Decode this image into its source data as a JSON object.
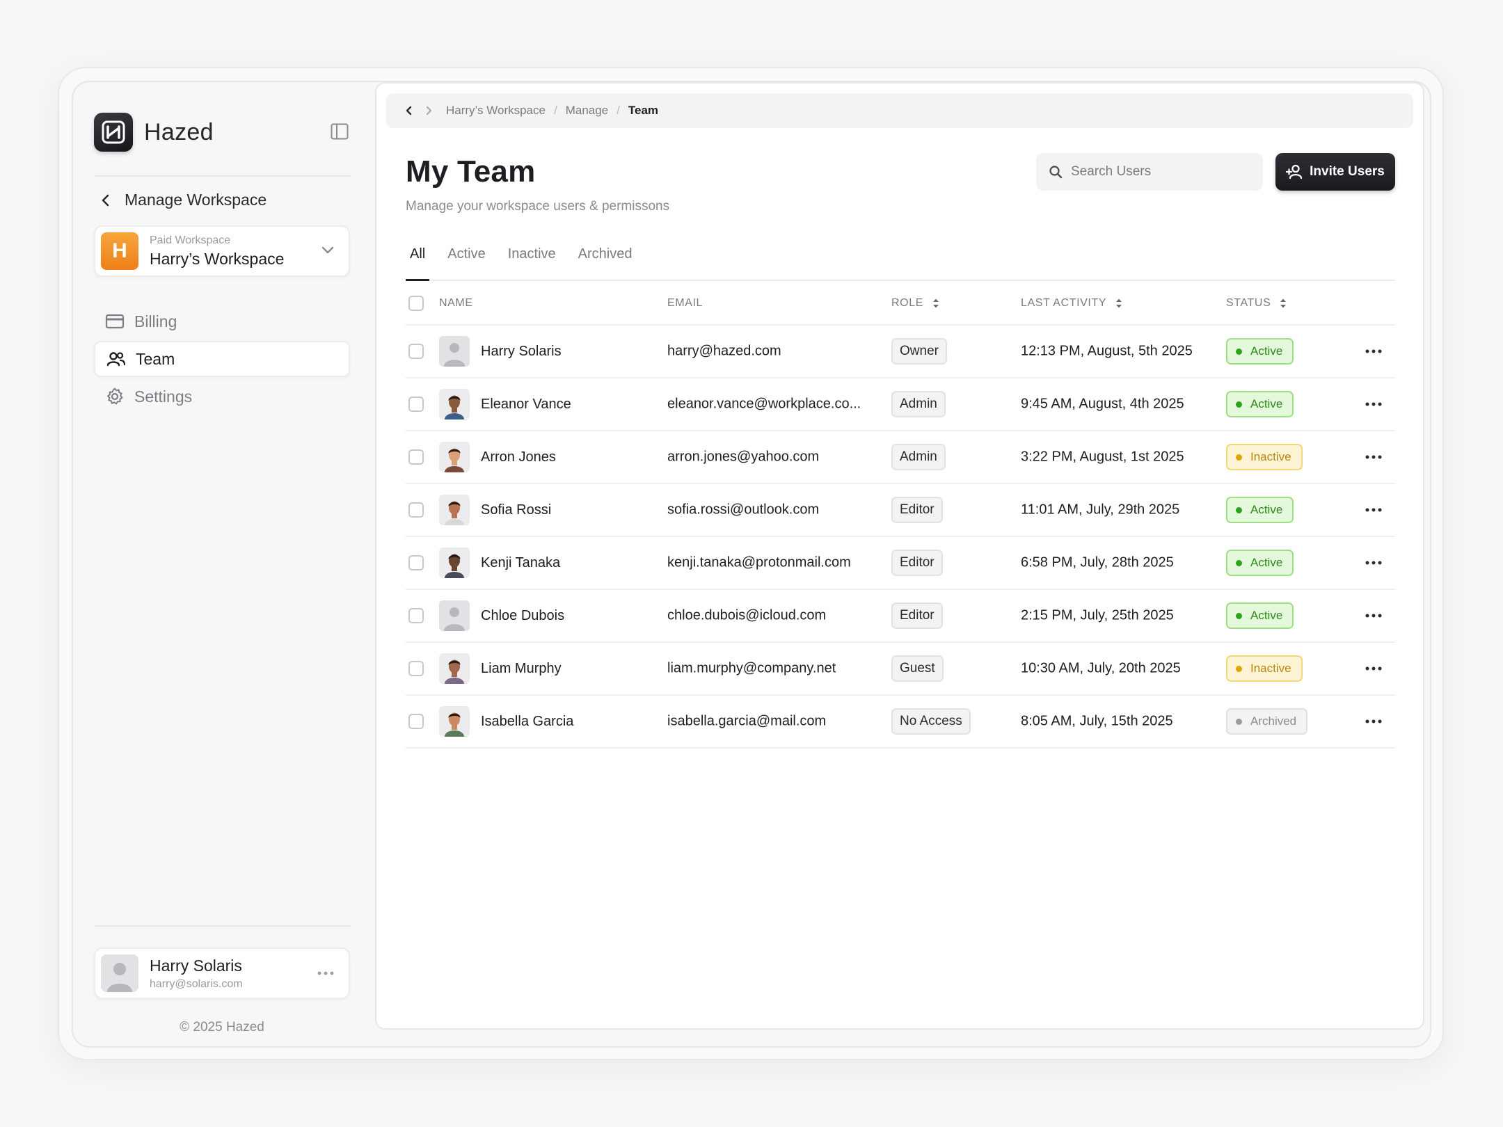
{
  "brand": {
    "name": "Hazed"
  },
  "sidebar": {
    "back_label": "Manage Workspace",
    "workspace": {
      "initial": "H",
      "plan": "Paid Workspace",
      "name": "Harry’s Workspace"
    },
    "items": [
      {
        "label": "Billing",
        "icon": "credit-card-icon"
      },
      {
        "label": "Team",
        "icon": "users-icon"
      },
      {
        "label": "Settings",
        "icon": "gear-icon"
      }
    ],
    "user": {
      "name": "Harry Solaris",
      "email": "harry@solaris.com"
    },
    "copyright": "© 2025 Hazed"
  },
  "breadcrumb": [
    "Harry’s Workspace",
    "Manage",
    "Team"
  ],
  "page": {
    "title": "My Team",
    "subtitle": "Manage your workspace users & permissons",
    "search_placeholder": "Search Users",
    "invite_label": "Invite Users"
  },
  "tabs": [
    "All",
    "Active",
    "Inactive",
    "Archived"
  ],
  "table": {
    "columns": [
      "NAME",
      "EMAIL",
      "ROLE",
      "LAST ACTIVITY",
      "STATUS"
    ],
    "rows": [
      {
        "name": "Harry Solaris",
        "email": "harry@hazed.com",
        "role": "Owner",
        "last_activity": "12:13 PM, August, 5th 2025",
        "status": "Active",
        "avatar": "placeholder"
      },
      {
        "name": "Eleanor Vance",
        "email": "eleanor.vance@workplace.co...",
        "role": "Admin",
        "last_activity": "9:45 AM, August, 4th 2025",
        "status": "Active",
        "avatar": "photo"
      },
      {
        "name": "Arron Jones",
        "email": "arron.jones@yahoo.com",
        "role": "Admin",
        "last_activity": "3:22 PM, August, 1st 2025",
        "status": "Inactive",
        "avatar": "photo"
      },
      {
        "name": "Sofia Rossi",
        "email": "sofia.rossi@outlook.com",
        "role": "Editor",
        "last_activity": "11:01 AM, July, 29th 2025",
        "status": "Active",
        "avatar": "photo"
      },
      {
        "name": "Kenji Tanaka",
        "email": "kenji.tanaka@protonmail.com",
        "role": "Editor",
        "last_activity": "6:58 PM, July, 28th 2025",
        "status": "Active",
        "avatar": "photo"
      },
      {
        "name": "Chloe Dubois",
        "email": "chloe.dubois@icloud.com",
        "role": "Editor",
        "last_activity": "2:15 PM, July, 25th 2025",
        "status": "Active",
        "avatar": "placeholder"
      },
      {
        "name": "Liam Murphy",
        "email": "liam.murphy@company.net",
        "role": "Guest",
        "last_activity": "10:30 AM, July, 20th 2025",
        "status": "Inactive",
        "avatar": "photo"
      },
      {
        "name": "Isabella Garcia",
        "email": "isabella.garcia@mail.com",
        "role": "No Access",
        "last_activity": "8:05 AM, July, 15th 2025",
        "status": "Archived",
        "avatar": "photo"
      }
    ]
  },
  "colors": {
    "active_bg": "#e4f8dc",
    "active_border": "#9fdf86",
    "active_text": "#2e8a1a",
    "active_dot": "#2fa31a",
    "inactive_bg": "#fdf4d6",
    "inactive_border": "#f2d77a",
    "inactive_text": "#b8860b",
    "inactive_dot": "#e0a500",
    "archived_bg": "#f3f3f4",
    "archived_border": "#e0e0e3",
    "archived_text": "#8a8a90",
    "archived_dot": "#9a9aa0",
    "workspace_accent": "#f39226"
  }
}
